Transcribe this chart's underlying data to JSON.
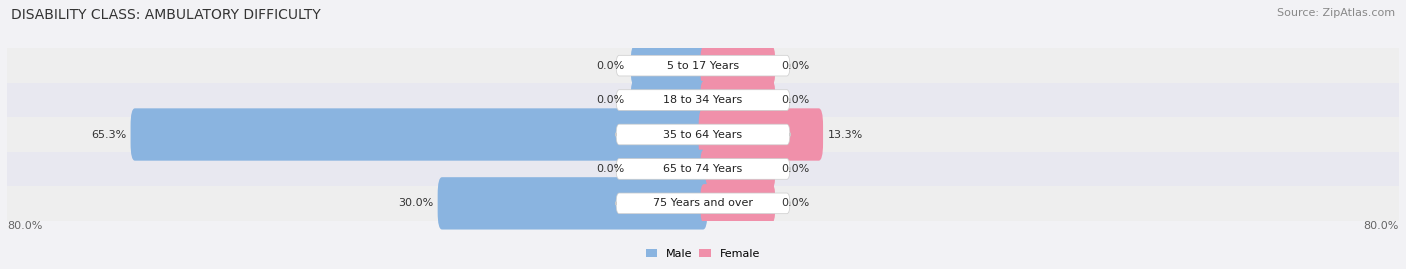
{
  "title": "DISABILITY CLASS: AMBULATORY DIFFICULTY",
  "source": "Source: ZipAtlas.com",
  "categories": [
    "5 to 17 Years",
    "18 to 34 Years",
    "35 to 64 Years",
    "65 to 74 Years",
    "75 Years and over"
  ],
  "male_values": [
    0.0,
    0.0,
    65.3,
    0.0,
    30.0
  ],
  "female_values": [
    0.0,
    0.0,
    13.3,
    0.0,
    0.0
  ],
  "male_color": "#8ab4e0",
  "female_color": "#f090aa",
  "row_bg_even": "#eeeeee",
  "row_bg_odd": "#e8e8f0",
  "fig_bg": "#f2f2f5",
  "axis_max": 80.0,
  "legend_male": "Male",
  "legend_female": "Female",
  "title_fontsize": 10,
  "source_fontsize": 8,
  "label_fontsize": 8,
  "cat_fontsize": 8
}
